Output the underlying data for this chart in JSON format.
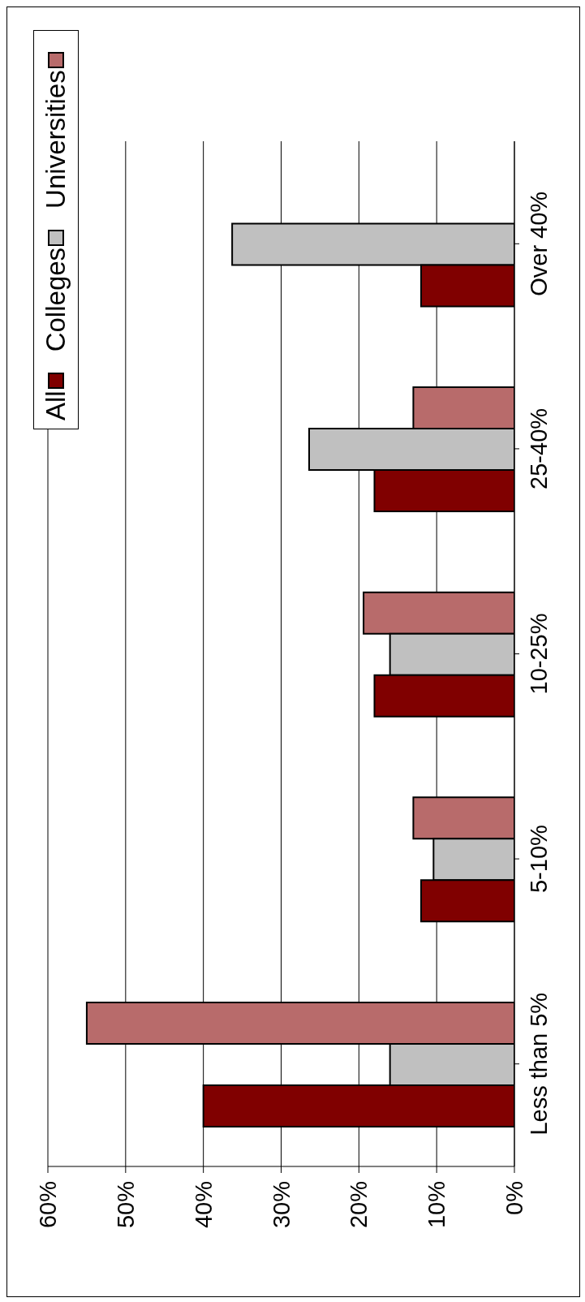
{
  "chart_data": {
    "type": "bar",
    "orientation": "horizontal",
    "categories": [
      "Over 40%",
      "25-40%",
      "10-25%",
      "5-10%",
      "Less than 5%"
    ],
    "series": [
      {
        "name": "All",
        "color": "#800000",
        "values": [
          12,
          18,
          18,
          12,
          40
        ]
      },
      {
        "name": "Colleges",
        "color": "#c0c0c0",
        "values": [
          36.3,
          26.4,
          16,
          10.4,
          16
        ]
      },
      {
        "name": "Universities",
        "color": "#b86b6b",
        "values": [
          null,
          13,
          19.4,
          13,
          55
        ]
      }
    ],
    "xlim": [
      60,
      0
    ],
    "xticks": [
      {
        "value": 0,
        "label": "0%"
      },
      {
        "value": 10,
        "label": "10%"
      },
      {
        "value": 20,
        "label": "20%"
      },
      {
        "value": 30,
        "label": "30%"
      },
      {
        "value": 40,
        "label": "40%"
      },
      {
        "value": 50,
        "label": "50%"
      },
      {
        "value": 60,
        "label": "60%"
      }
    ],
    "grid": "x",
    "legend": "top left"
  }
}
